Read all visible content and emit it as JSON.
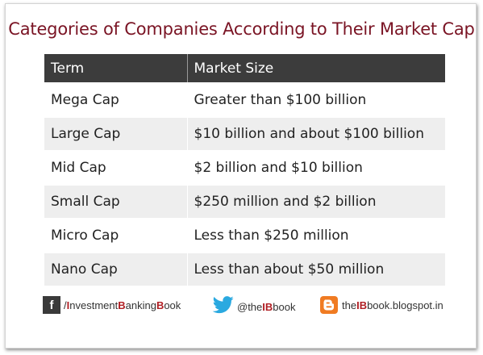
{
  "title": "Categories of Companies According to Their Market Cap",
  "table": {
    "headers": [
      "Term",
      "Market Size"
    ],
    "rows": [
      {
        "term": "Mega Cap",
        "size": "Greater than $100 billion"
      },
      {
        "term": "Large Cap",
        "size": "$10 billion and about $100 billion"
      },
      {
        "term": "Mid Cap",
        "size": "$2 billion and $10 billion"
      },
      {
        "term": "Small Cap",
        "size": "$250 million and $2 billion"
      },
      {
        "term": "Micro Cap",
        "size": "Less than $250 million"
      },
      {
        "term": "Nano Cap",
        "size": "Less than about $50 million"
      }
    ]
  },
  "footer": {
    "facebook": {
      "icon": "facebook-icon",
      "slash": "/",
      "p1": "I",
      "p2": "nvestment",
      "p3": "B",
      "p4": "anking",
      "p5": "B",
      "p6": "ook"
    },
    "twitter": {
      "icon": "twitter-bird-icon",
      "p1": "@the",
      "p2": "IB",
      "p3": "book"
    },
    "blog": {
      "icon": "blogger-icon",
      "p1": "the",
      "p2": "IB",
      "p3": "book.blogspot.in"
    }
  },
  "colors": {
    "title": "#7a1424",
    "header_bg": "#3c3c3c",
    "row_alt": "#eeeeee",
    "accent": "#b01f24",
    "blogger": "#f07b22",
    "twitter": "#2aa9e0"
  }
}
